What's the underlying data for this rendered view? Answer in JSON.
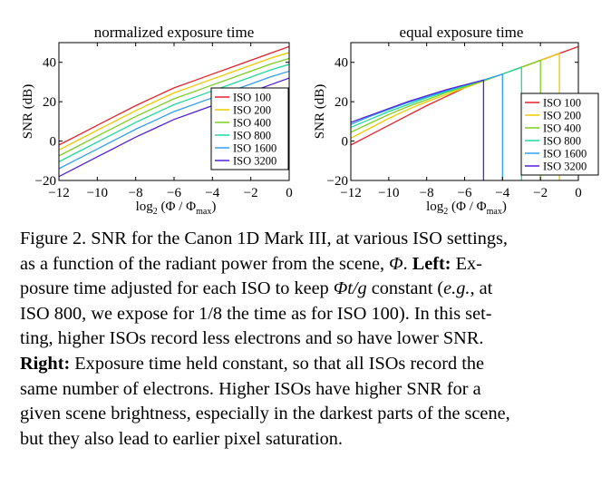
{
  "chart_data": [
    {
      "type": "line",
      "title": "normalized exposure time",
      "xlabel": "log2 (Φ / Φmax)",
      "ylabel": "SNR (dB)",
      "xlim": [
        -12,
        0
      ],
      "ylim": [
        -20,
        50
      ],
      "xticks": [
        -12,
        -10,
        -8,
        -6,
        -4,
        -2,
        0
      ],
      "yticks": [
        -20,
        0,
        20,
        40
      ],
      "legend_position": "lower-right",
      "x": [
        -12,
        -11,
        -10,
        -9,
        -8,
        -7,
        -6,
        -5,
        -4,
        -3,
        -2,
        -1,
        0
      ],
      "series": [
        {
          "name": "ISO 100",
          "color": "#e8202a",
          "values": [
            -2,
            3,
            8,
            13,
            18,
            22.5,
            27,
            30.5,
            34,
            37.5,
            41,
            44.5,
            48
          ]
        },
        {
          "name": "ISO 200",
          "color": "#f0c800",
          "values": [
            -4.5,
            0.5,
            5.5,
            10.5,
            15.5,
            20,
            24.5,
            28,
            31.5,
            35,
            38.5,
            42,
            45
          ]
        },
        {
          "name": "ISO 400",
          "color": "#7ad020",
          "values": [
            -7.5,
            -2.5,
            2.5,
            7.5,
            12.5,
            17,
            21.5,
            25,
            28.5,
            32,
            35.5,
            39,
            42
          ]
        },
        {
          "name": "ISO 800",
          "color": "#20d8a0",
          "values": [
            -10.5,
            -5.5,
            -0.5,
            4.5,
            9.5,
            14,
            18.5,
            22,
            25.5,
            29,
            32.5,
            36,
            39
          ]
        },
        {
          "name": "ISO 1600",
          "color": "#30a0f0",
          "values": [
            -14,
            -9,
            -4,
            1,
            6,
            10.5,
            15,
            18.5,
            22,
            25.5,
            29,
            32.5,
            35.5
          ]
        },
        {
          "name": "ISO 3200",
          "color": "#5020d8",
          "values": [
            -18,
            -13,
            -8,
            -3,
            2,
            6.5,
            11,
            14.5,
            18,
            21.5,
            25,
            28.5,
            32
          ]
        }
      ]
    },
    {
      "type": "line",
      "title": "equal exposure time",
      "xlabel": "log2 (Φ / Φmax)",
      "ylabel": "SNR (dB)",
      "xlim": [
        -12,
        0
      ],
      "ylim": [
        -20,
        50
      ],
      "xticks": [
        -12,
        -10,
        -8,
        -6,
        -4,
        -2,
        0
      ],
      "yticks": [
        -20,
        0,
        20,
        40
      ],
      "legend_position": "lower-right",
      "series": [
        {
          "name": "ISO 100",
          "color": "#e8202a",
          "x": [
            -12,
            -11,
            -10,
            -9,
            -8,
            -7,
            -6,
            -5,
            -4,
            -3,
            -2,
            -1,
            0
          ],
          "values": [
            -2,
            3,
            8,
            13,
            18,
            22.5,
            27,
            30.5,
            34,
            37.5,
            41,
            44.5,
            48
          ]
        },
        {
          "name": "ISO 200",
          "color": "#f0c800",
          "x": [
            -12,
            -11,
            -10,
            -9,
            -8,
            -7,
            -6,
            -5,
            -4,
            -3,
            -2,
            -1
          ],
          "values": [
            1.5,
            6.5,
            11.5,
            16,
            20,
            23.5,
            27,
            30.5,
            34,
            37.5,
            41,
            44.5
          ],
          "saturation_x": -1,
          "saturation_y": 44.5
        },
        {
          "name": "ISO 400",
          "color": "#7ad020",
          "x": [
            -12,
            -11,
            -10,
            -9,
            -8,
            -7,
            -6,
            -5,
            -4,
            -3,
            -2
          ],
          "values": [
            4.5,
            9,
            13.5,
            17.5,
            21,
            24.5,
            27.5,
            30.5,
            34,
            37.5,
            41
          ],
          "saturation_x": -2,
          "saturation_y": 41
        },
        {
          "name": "ISO 800",
          "color": "#20d8a0",
          "x": [
            -12,
            -11,
            -10,
            -9,
            -8,
            -7,
            -6,
            -5,
            -4,
            -3
          ],
          "values": [
            7,
            11,
            15,
            18.5,
            22,
            25,
            28,
            31,
            34,
            37.5
          ],
          "saturation_x": -3,
          "saturation_y": 37.5
        },
        {
          "name": "ISO 1600",
          "color": "#30a0f0",
          "x": [
            -12,
            -11,
            -10,
            -9,
            -8,
            -7,
            -6,
            -5,
            -4
          ],
          "values": [
            8.5,
            12.5,
            16,
            19.5,
            22.5,
            25.5,
            28.5,
            31,
            34
          ],
          "saturation_x": -4,
          "saturation_y": 34
        },
        {
          "name": "ISO 3200",
          "color": "#5020d8",
          "x": [
            -12,
            -11,
            -10,
            -9,
            -8,
            -7,
            -6,
            -5
          ],
          "values": [
            9.5,
            13,
            16.5,
            20,
            23,
            26,
            28.5,
            31
          ],
          "saturation_x": -5,
          "saturation_y": 31
        }
      ]
    }
  ],
  "caption": {
    "l1": "Figure 2. SNR for the Canon 1D Mark III, at various ISO settings,",
    "l2a": "as a function of the radiant power from the scene, ",
    "l2b": "Φ",
    "l2c": ". ",
    "l2d": "Left:",
    "l2e": " Ex-",
    "l3a": "posure time adjusted for each ISO to keep ",
    "l3b": "Φt/g",
    "l3c": " constant (",
    "l3d": "e.g.",
    "l3e": ", at",
    "l4": "ISO 800, we expose for 1/8 the time as for ISO 100). In this set-",
    "l5": "ting, higher ISOs record less electrons and so have lower SNR.",
    "l6a": "Right:",
    "l6b": " Exposure time held constant, so that all ISOs record the",
    "l7": "same number of electrons. Higher ISOs have higher SNR for a",
    "l8": "given scene brightness, especially in the darkest parts of the scene,",
    "l9": "but they also lead to earlier pixel saturation."
  }
}
